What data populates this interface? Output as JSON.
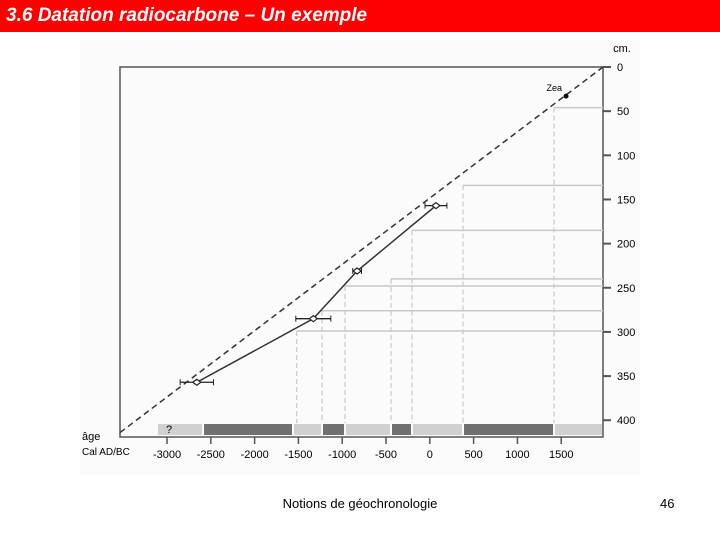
{
  "header": {
    "title": "3.6 Datation radiocarbone – Un exemple"
  },
  "chart_data": {
    "type": "age-depth",
    "x_label_line1": "âge",
    "x_label_line2": "Cal AD/BC",
    "y_label": "cm.",
    "xlim": [
      -3537,
      1977
    ],
    "ylim": [
      0,
      419
    ],
    "xticks": [
      -3000,
      -2500,
      -2000,
      -1500,
      -1000,
      -500,
      0,
      500,
      1000,
      1500
    ],
    "yticks": [
      0,
      50,
      100,
      150,
      200,
      250,
      300,
      350,
      400
    ],
    "extrapolation": {
      "x": [
        -3537,
        1977
      ],
      "values": [
        414,
        0
      ],
      "color": "#333333"
    },
    "model": {
      "x": [
        -2660,
        -1330,
        -830,
        70
      ],
      "values": [
        357,
        285,
        231,
        157
      ],
      "color": "#333333"
    },
    "dates": {
      "x": [
        -2660,
        -1330,
        -830,
        70
      ],
      "values": [
        357,
        285,
        231,
        157
      ],
      "errors": [
        190,
        200,
        50,
        125
      ]
    },
    "marker": {
      "label": "Zea",
      "x": 1555,
      "value": 33
    },
    "zones": {
      "ages": [
        1418,
        379,
        -203,
        -443,
        -968,
        -1231,
        -1520
      ],
      "depths": [
        46,
        134,
        185,
        240,
        248,
        276,
        299
      ]
    },
    "bands": {
      "edges": [
        -3114,
        -2589,
        -1562,
        -1231,
        -968,
        -443,
        -203,
        379,
        1418,
        1977
      ],
      "colors": [
        "#d0d0d0",
        "#707070",
        "#d0d0d0",
        "#707070",
        "#d0d0d0",
        "#707070",
        "#d0d0d0",
        "#707070",
        "#d0d0d0"
      ],
      "first_label": "?"
    }
  },
  "footer": {
    "text": "Notions de géochronologie",
    "page": "46"
  }
}
